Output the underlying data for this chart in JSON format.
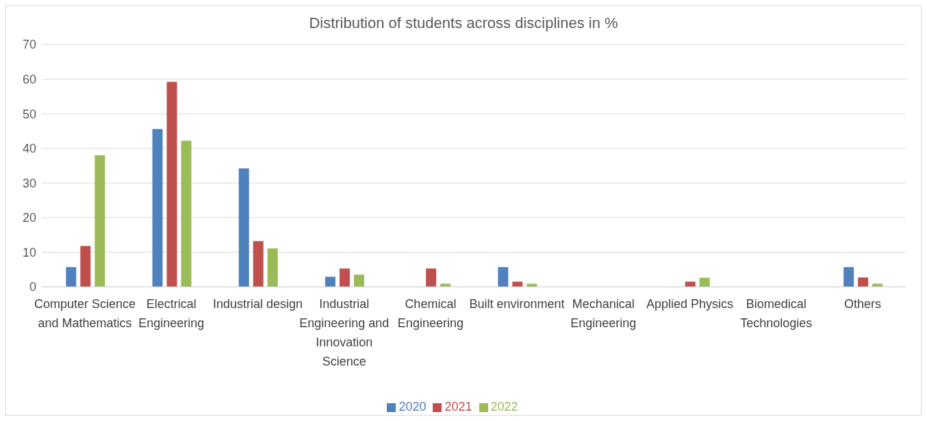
{
  "chart_data": {
    "type": "bar",
    "title": "Distribution of students across disciplines in %",
    "categories": [
      "Computer Science and Mathematics",
      "Electrical Engineering",
      "Industrial design",
      "Industrial Engineering and Innovation Science",
      "Chemical Engineering",
      "Built environment",
      "Mechanical Engineering",
      "Applied Physics",
      "Biomedical Technologies",
      "Others"
    ],
    "series": [
      {
        "name": "2020",
        "color": "#4f81bd",
        "values": [
          5.7,
          45.6,
          34.2,
          2.9,
          0,
          5.7,
          0,
          0,
          0,
          5.7
        ]
      },
      {
        "name": "2021",
        "color": "#c0504d",
        "values": [
          11.8,
          59.2,
          13.2,
          5.3,
          5.3,
          1.5,
          0,
          1.5,
          0,
          2.7
        ]
      },
      {
        "name": "2022",
        "color": "#9bbb59",
        "values": [
          38.0,
          42.2,
          11.1,
          3.5,
          0.9,
          0.9,
          0,
          2.6,
          0,
          0.9
        ]
      }
    ],
    "ylim": [
      0,
      70
    ],
    "yticks": [
      0,
      10,
      20,
      30,
      40,
      50,
      60,
      70
    ],
    "grid": "y",
    "legend": "bottom"
  }
}
